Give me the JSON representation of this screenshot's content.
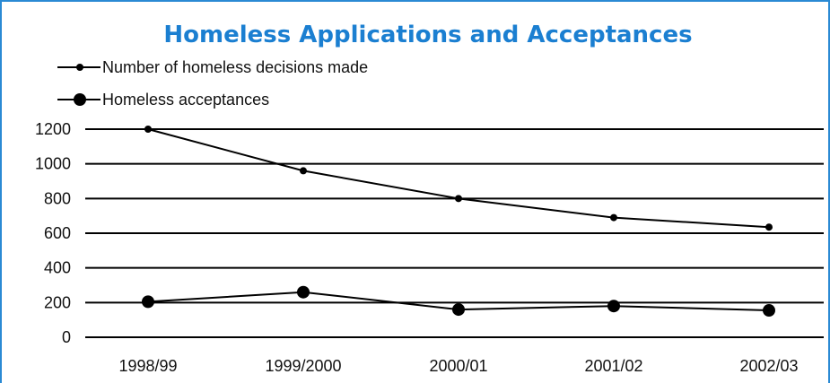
{
  "chart_data": {
    "type": "line",
    "title": "Homeless Applications and Acceptances",
    "xlabel": "",
    "ylabel": "",
    "categories": [
      "1998/99",
      "1999/2000",
      "2000/01",
      "2001/02",
      "2002/03"
    ],
    "ylim": [
      0,
      1200
    ],
    "yticks": [
      "0",
      "200",
      "400",
      "600",
      "800",
      "1000",
      "1200"
    ],
    "grid": true,
    "legend_position": "top-left",
    "series": [
      {
        "name": "Number of homeless decisions made",
        "values": [
          1200,
          960,
          800,
          690,
          635
        ],
        "marker": "small-dot"
      },
      {
        "name": "Homeless acceptances",
        "values": [
          205,
          260,
          160,
          180,
          155
        ],
        "marker": "large-dot"
      }
    ],
    "colors": {
      "title": "#1b7fd1",
      "lines": "#000000",
      "frame": "#2a8ad4"
    }
  }
}
